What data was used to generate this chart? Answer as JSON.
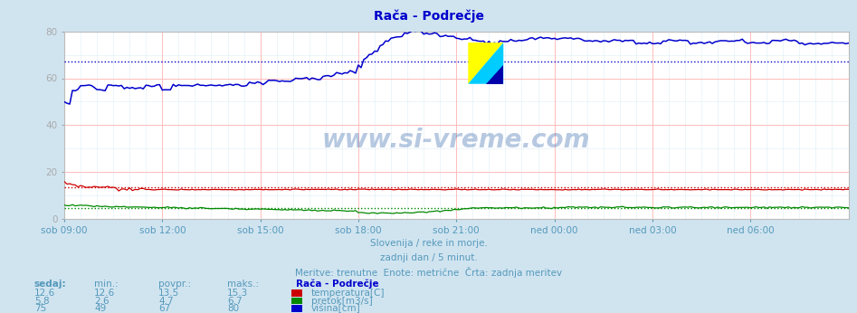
{
  "title": "Rača - Podrečje",
  "title_color": "#0000cc",
  "background_color": "#d0e4f0",
  "plot_bg_color": "#ffffff",
  "xlim": [
    0,
    288
  ],
  "ylim": [
    0,
    80
  ],
  "yticks": [
    0,
    20,
    40,
    60,
    80
  ],
  "xtick_labels": [
    "sob 09:00",
    "sob 12:00",
    "sob 15:00",
    "sob 18:00",
    "sob 21:00",
    "ned 00:00",
    "ned 03:00",
    "ned 06:00"
  ],
  "xtick_positions": [
    0,
    36,
    72,
    108,
    144,
    180,
    216,
    252
  ],
  "temp_color": "#cc0000",
  "flow_color": "#008800",
  "height_color": "#0000cc",
  "temp_avg": 13.5,
  "flow_avg": 4.7,
  "height_avg": 67,
  "temp_min": 12.6,
  "flow_min": 2.6,
  "height_min": 49,
  "temp_max": 15.3,
  "flow_max": 6.7,
  "height_max": 80,
  "temp_current": 12.6,
  "flow_current": 5.8,
  "height_current": 75,
  "watermark": "www.si-vreme.com",
  "subtitle1": "Slovenija / reke in morje.",
  "subtitle2": "zadnji dan / 5 minut.",
  "subtitle3": "Meritve: trenutne  Enote: metrične  Črta: zadnja meritev",
  "info_color": "#5599bb",
  "label_color": "#5599bb"
}
